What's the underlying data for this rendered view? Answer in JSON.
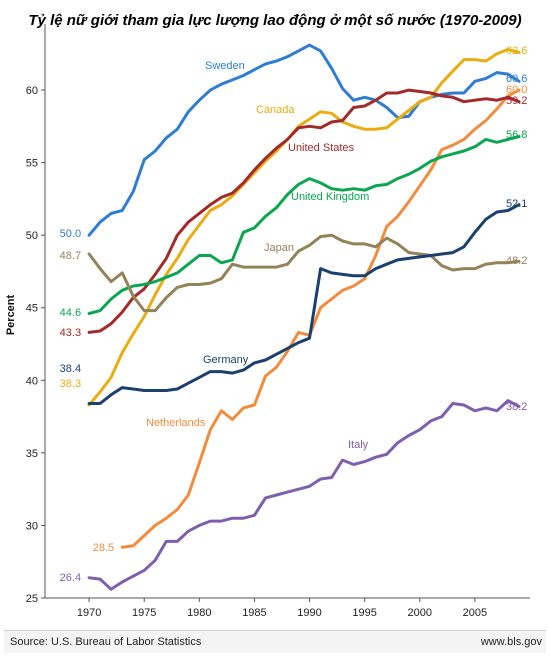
{
  "chart_data": {
    "type": "line",
    "title": "Tỷ lệ nữ giới tham gia lực lượng lao động ở một số nước (1970-2009)",
    "xlabel": "",
    "ylabel": "Percent",
    "xlim": [
      1966,
      2010
    ],
    "ylim": [
      25,
      64
    ],
    "x_ticks": [
      1970,
      1975,
      1980,
      1985,
      1990,
      1995,
      2000,
      2005
    ],
    "y_ticks": [
      25,
      30,
      35,
      40,
      45,
      50,
      55,
      60
    ],
    "grid": false,
    "legend": "inline labels",
    "x": [
      1970,
      1971,
      1972,
      1973,
      1974,
      1975,
      1976,
      1977,
      1978,
      1979,
      1980,
      1981,
      1982,
      1983,
      1984,
      1985,
      1986,
      1987,
      1988,
      1989,
      1990,
      1991,
      1992,
      1993,
      1994,
      1995,
      1996,
      1997,
      1998,
      1999,
      2000,
      2001,
      2002,
      2003,
      2004,
      2005,
      2006,
      2007,
      2008,
      2009
    ],
    "series": [
      {
        "name": "Sweden",
        "color": "#2e7dd1",
        "start_label": "50.0",
        "end_label": "60.6",
        "values": [
          50.0,
          50.9,
          51.5,
          51.7,
          53.0,
          55.2,
          55.8,
          56.7,
          57.3,
          58.5,
          59.3,
          60.0,
          60.4,
          60.7,
          61.0,
          61.4,
          61.8,
          62.0,
          62.3,
          62.7,
          63.1,
          62.7,
          61.5,
          60.1,
          59.3,
          59.5,
          59.3,
          58.8,
          58.1,
          58.2,
          59.2,
          59.5,
          59.7,
          59.8,
          59.8,
          60.6,
          60.8,
          61.2,
          61.1,
          60.6
        ],
        "start_val": 50.0,
        "end_val": 60.6
      },
      {
        "name": "Canada",
        "color": "#e9ad12",
        "start_label": "38.3",
        "end_label": "62.6",
        "values": [
          38.3,
          39.2,
          40.2,
          41.9,
          43.2,
          44.4,
          45.9,
          47.3,
          48.4,
          49.7,
          50.7,
          51.7,
          52.1,
          52.7,
          53.5,
          54.3,
          55.1,
          55.8,
          56.6,
          57.5,
          58.0,
          58.5,
          58.4,
          57.8,
          57.5,
          57.3,
          57.3,
          57.4,
          58.0,
          58.6,
          59.2,
          59.5,
          60.5,
          61.3,
          62.1,
          62.1,
          62.0,
          62.5,
          62.8,
          62.6
        ],
        "start_val": 38.3,
        "end_val": 62.6
      },
      {
        "name": "Netherlands",
        "color": "#f28c3c",
        "start_label": "28.5",
        "end_label": "60.0",
        "values": [
          null,
          null,
          null,
          28.5,
          28.6,
          29.3,
          30.0,
          30.5,
          31.1,
          32.1,
          34.3,
          36.6,
          37.9,
          37.3,
          38.1,
          38.3,
          40.3,
          40.9,
          42.0,
          43.3,
          43.1,
          45.0,
          45.6,
          46.2,
          46.5,
          47.0,
          48.6,
          50.6,
          51.3,
          52.3,
          53.4,
          54.5,
          55.9,
          56.2,
          56.6,
          57.3,
          57.9,
          58.7,
          59.6,
          60.0
        ],
        "start_val": 28.5,
        "end_val": 60.0
      },
      {
        "name": "United States",
        "color": "#a32a2a",
        "start_label": "43.3",
        "end_label": "59.2",
        "values": [
          43.3,
          43.4,
          43.9,
          44.7,
          45.7,
          46.3,
          47.3,
          48.4,
          50.0,
          50.9,
          51.5,
          52.1,
          52.6,
          52.9,
          53.6,
          54.5,
          55.3,
          56.0,
          56.6,
          57.4,
          57.5,
          57.4,
          57.8,
          57.9,
          58.8,
          58.9,
          59.3,
          59.8,
          59.8,
          60.0,
          59.9,
          59.8,
          59.6,
          59.5,
          59.2,
          59.3,
          59.4,
          59.3,
          59.5,
          59.2
        ],
        "start_val": 43.3,
        "end_val": 59.2
      },
      {
        "name": "United Kingdom",
        "color": "#0ba650",
        "start_label": "44.6",
        "end_label": "56.8",
        "values": [
          44.6,
          44.8,
          45.6,
          46.2,
          46.5,
          46.6,
          46.8,
          47.1,
          47.4,
          48.0,
          48.6,
          48.6,
          48.1,
          48.3,
          50.2,
          50.5,
          51.3,
          51.9,
          52.8,
          53.5,
          53.9,
          53.6,
          53.2,
          53.1,
          53.2,
          53.1,
          53.4,
          53.5,
          53.9,
          54.2,
          54.6,
          55.1,
          55.4,
          55.6,
          55.8,
          56.1,
          56.6,
          56.4,
          56.6,
          56.8
        ],
        "start_val": 44.6,
        "end_val": 56.8
      },
      {
        "name": "Japan",
        "color": "#948259",
        "start_label": "48.7",
        "end_label": "48.2",
        "values": [
          48.7,
          47.7,
          46.8,
          47.4,
          45.8,
          44.8,
          44.8,
          45.7,
          46.4,
          46.6,
          46.6,
          46.7,
          47.0,
          48.0,
          47.8,
          47.8,
          47.8,
          47.8,
          48.0,
          48.9,
          49.3,
          49.9,
          50.0,
          49.6,
          49.4,
          49.4,
          49.2,
          49.8,
          49.4,
          48.8,
          48.7,
          48.6,
          47.9,
          47.6,
          47.7,
          47.7,
          48.0,
          48.1,
          48.1,
          48.2
        ],
        "start_val": 48.7,
        "end_val": 48.2
      },
      {
        "name": "Germany",
        "color": "#1b3f6e",
        "start_label": "38.4",
        "end_label": "52.1",
        "values": [
          38.4,
          38.4,
          39.0,
          39.5,
          39.4,
          39.3,
          39.3,
          39.3,
          39.4,
          39.8,
          40.2,
          40.6,
          40.6,
          40.5,
          40.7,
          41.2,
          41.4,
          41.8,
          42.2,
          42.6,
          42.9,
          47.7,
          47.4,
          47.3,
          47.2,
          47.2,
          47.7,
          48.0,
          48.3,
          48.4,
          48.5,
          48.6,
          48.7,
          48.8,
          49.2,
          50.2,
          51.1,
          51.6,
          51.7,
          52.1
        ],
        "start_val": 38.4,
        "end_val": 52.1
      },
      {
        "name": "Italy",
        "color": "#7e5fae",
        "start_label": "26.4",
        "end_label": "38.2",
        "values": [
          26.4,
          26.3,
          25.6,
          26.1,
          26.5,
          26.9,
          27.6,
          28.9,
          28.9,
          29.6,
          30.0,
          30.3,
          30.3,
          30.5,
          30.5,
          30.7,
          31.9,
          32.1,
          32.3,
          32.5,
          32.7,
          33.2,
          33.3,
          34.5,
          34.2,
          34.4,
          34.7,
          34.9,
          35.7,
          36.2,
          36.6,
          37.2,
          37.5,
          38.4,
          38.3,
          37.9,
          38.1,
          37.9,
          38.6,
          38.2
        ],
        "start_val": 26.4,
        "end_val": 38.2
      }
    ]
  },
  "footer": {
    "source": "Source: U.S. Bureau of Labor Statistics",
    "site": "www.bls.gov"
  }
}
